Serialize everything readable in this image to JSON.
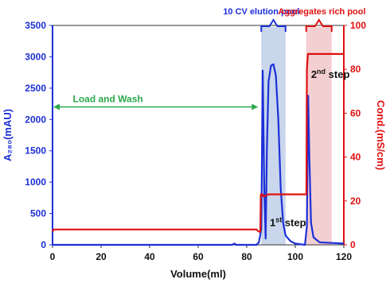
{
  "chart_data": {
    "type": "line",
    "title": "",
    "xlabel": "Volume(ml)",
    "ylabel_left": "A₂₈₀(mAU)",
    "ylabel_right": "Cond.(mS/cm)",
    "xlim": [
      0,
      120
    ],
    "ylim_left": [
      0,
      3500
    ],
    "ylim_right": [
      0,
      100
    ],
    "x_ticks": [
      0,
      20,
      40,
      60,
      80,
      100,
      120
    ],
    "y_ticks_left": [
      0,
      500,
      1000,
      1500,
      2000,
      2500,
      3000,
      3500
    ],
    "y_ticks_right": [
      0,
      20,
      40,
      60,
      80,
      100
    ],
    "grid": false,
    "colors": {
      "absorbance": "#1c2fd8",
      "conductivity": "#e01010",
      "elution_band": "#c9d6ec",
      "aggregate_band": "#f4cfd2",
      "load_wash": "#2aa84a"
    },
    "series": [
      {
        "axis": "left",
        "points": [
          [
            0,
            0
          ],
          [
            74,
            0
          ],
          [
            75,
            20
          ],
          [
            75.5,
            0
          ],
          [
            84,
            0
          ],
          [
            85,
            40
          ],
          [
            86,
            250
          ],
          [
            86.6,
            2780
          ],
          [
            87.2,
            900
          ],
          [
            87.8,
            100
          ],
          [
            88.3,
            1500
          ],
          [
            89,
            2600
          ],
          [
            90,
            2860
          ],
          [
            91,
            2880
          ],
          [
            92,
            2700
          ],
          [
            93,
            2000
          ],
          [
            94,
            900
          ],
          [
            95,
            350
          ],
          [
            96,
            150
          ],
          [
            98,
            60
          ],
          [
            100,
            20
          ],
          [
            104,
            0
          ],
          [
            104.8,
            300
          ],
          [
            105.3,
            2380
          ],
          [
            105.8,
            1400
          ],
          [
            106.5,
            350
          ],
          [
            107.5,
            120
          ],
          [
            110,
            40
          ],
          [
            120,
            20
          ]
        ]
      },
      {
        "axis": "right",
        "points": [
          [
            0,
            6
          ],
          [
            0.5,
            7
          ],
          [
            84,
            7
          ],
          [
            85,
            6
          ],
          [
            85.6,
            6
          ],
          [
            85.8,
            23
          ],
          [
            86.5,
            23
          ],
          [
            87,
            22
          ],
          [
            89,
            23
          ],
          [
            104,
            23
          ],
          [
            104.6,
            23
          ],
          [
            104.8,
            80
          ],
          [
            105.2,
            87
          ],
          [
            106,
            87
          ],
          [
            120,
            87
          ]
        ]
      }
    ],
    "regions": [
      {
        "label": "10 CV elution pool",
        "x": [
          86,
          96
        ]
      },
      {
        "label": "Aggregates rich pool",
        "x": [
          104.5,
          115
        ]
      }
    ],
    "annotations": {
      "load_wash": {
        "text": "Load and Wash",
        "x_from": 0,
        "x_to": 85,
        "y": 2200
      },
      "step1": {
        "main": "1",
        "sup": "st",
        "rest": " step"
      },
      "step2": {
        "main": "2",
        "sup": "nd",
        "rest": " step"
      }
    }
  }
}
